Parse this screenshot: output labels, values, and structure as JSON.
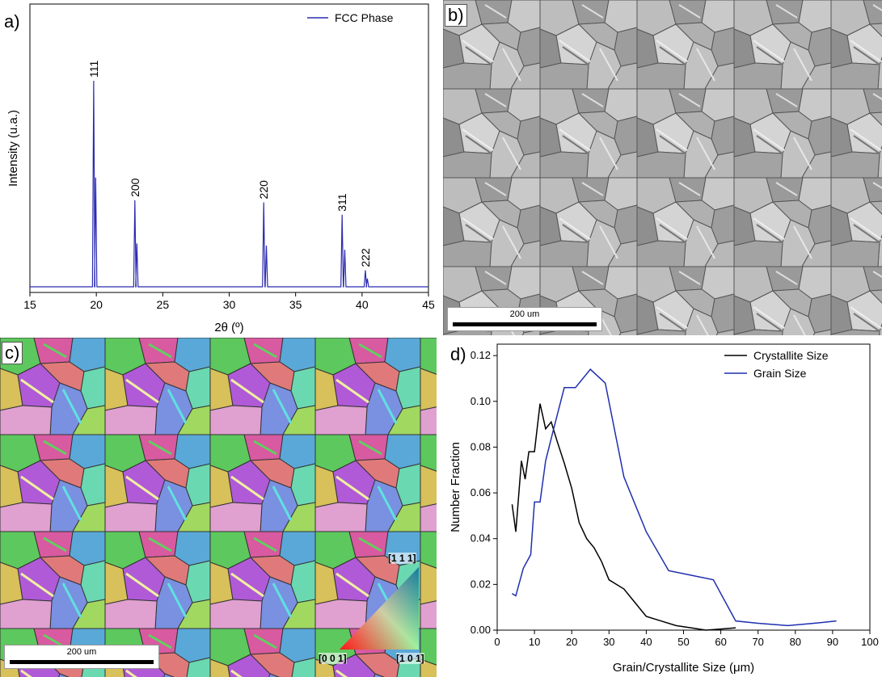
{
  "panels": {
    "a": "a)",
    "b": "b)",
    "c": "c)",
    "d": "d)"
  },
  "micrographs": {
    "b": {
      "scale_label": "200 um"
    },
    "c": {
      "scale_label": "200 um",
      "ipf_labels": [
        "[1 1 1]",
        "[0 0 1]",
        "[1 0 1]"
      ]
    }
  },
  "chart_data": [
    {
      "type": "line",
      "panel": "a",
      "xlabel": "2θ (º)",
      "ylabel": "Intensity (u.a.)",
      "xlim": [
        15,
        45
      ],
      "xticks": [
        "15",
        "20",
        "25",
        "30",
        "35",
        "40",
        "45"
      ],
      "legend": "top-right",
      "series": [
        {
          "name": "FCC Phase",
          "color": "#2b2bb0",
          "baseline": 0.03,
          "peaks": [
            {
              "x": 19.8,
              "h": 1.0,
              "label": "111"
            },
            {
              "x": 19.95,
              "h": 0.53
            },
            {
              "x": 22.9,
              "h": 0.42,
              "label": "200"
            },
            {
              "x": 23.05,
              "h": 0.21
            },
            {
              "x": 32.6,
              "h": 0.41,
              "label": "220"
            },
            {
              "x": 32.8,
              "h": 0.2
            },
            {
              "x": 38.5,
              "h": 0.35,
              "label": "311"
            },
            {
              "x": 38.7,
              "h": 0.18
            },
            {
              "x": 40.25,
              "h": 0.08,
              "label": "222"
            },
            {
              "x": 40.4,
              "h": 0.04
            }
          ]
        }
      ]
    },
    {
      "type": "line",
      "panel": "d",
      "xlabel": "Grain/Crystallite Size (μm)",
      "ylabel": "Number Fraction",
      "xlim": [
        0,
        100
      ],
      "ylim": [
        0,
        0.125
      ],
      "xticks": [
        "0",
        "10",
        "20",
        "30",
        "40",
        "50",
        "60",
        "70",
        "80",
        "90",
        "100"
      ],
      "yticks": [
        "0.00",
        "0.02",
        "0.04",
        "0.06",
        "0.08",
        "0.10",
        "0.12"
      ],
      "legend": "top-right",
      "series": [
        {
          "name": "Crystallite Size",
          "color": "#000000",
          "x": [
            4,
            5,
            6.5,
            7.5,
            8.5,
            10,
            11.5,
            13,
            14.5,
            16,
            18,
            20,
            22,
            24,
            26,
            28,
            30,
            32,
            34,
            36,
            40,
            44,
            48,
            52,
            56,
            60,
            64
          ],
          "y": [
            0.055,
            0.043,
            0.074,
            0.066,
            0.078,
            0.078,
            0.099,
            0.088,
            0.091,
            0.083,
            0.073,
            0.062,
            0.047,
            0.04,
            0.036,
            0.03,
            0.022,
            0.02,
            0.018,
            0.014,
            0.006,
            0.004,
            0.002,
            0.001,
            0.0,
            0.0005,
            0.001
          ]
        },
        {
          "name": "Grain Size",
          "color": "#1f2fb0",
          "x": [
            4,
            5,
            7,
            9,
            10,
            11.5,
            13,
            15,
            18,
            21,
            25,
            29,
            34,
            40,
            46,
            52,
            58,
            64,
            70,
            78,
            85,
            91
          ],
          "y": [
            0.016,
            0.015,
            0.027,
            0.033,
            0.056,
            0.056,
            0.074,
            0.087,
            0.106,
            0.106,
            0.114,
            0.108,
            0.067,
            0.043,
            0.026,
            0.024,
            0.022,
            0.004,
            0.003,
            0.002,
            0.003,
            0.004
          ]
        }
      ]
    }
  ]
}
